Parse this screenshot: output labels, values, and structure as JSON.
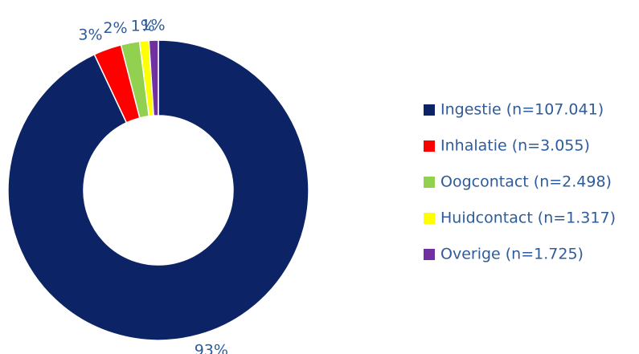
{
  "chart_data": {
    "type": "donut",
    "categories": [
      "Ingestie (n=107.041)",
      "Inhalatie (n=3.055)",
      "Oogcontact (n=2.498)",
      "Huidcontact (n=1.317)",
      "Overige (n=1.725)"
    ],
    "values": [
      93,
      3,
      2,
      1,
      1
    ],
    "value_labels": [
      "93%",
      "3%",
      "2%",
      "1%",
      "1%"
    ],
    "colors": [
      "#0c2366",
      "#ff0000",
      "#92d050",
      "#ffff00",
      "#7030a0"
    ],
    "legend": "right"
  }
}
